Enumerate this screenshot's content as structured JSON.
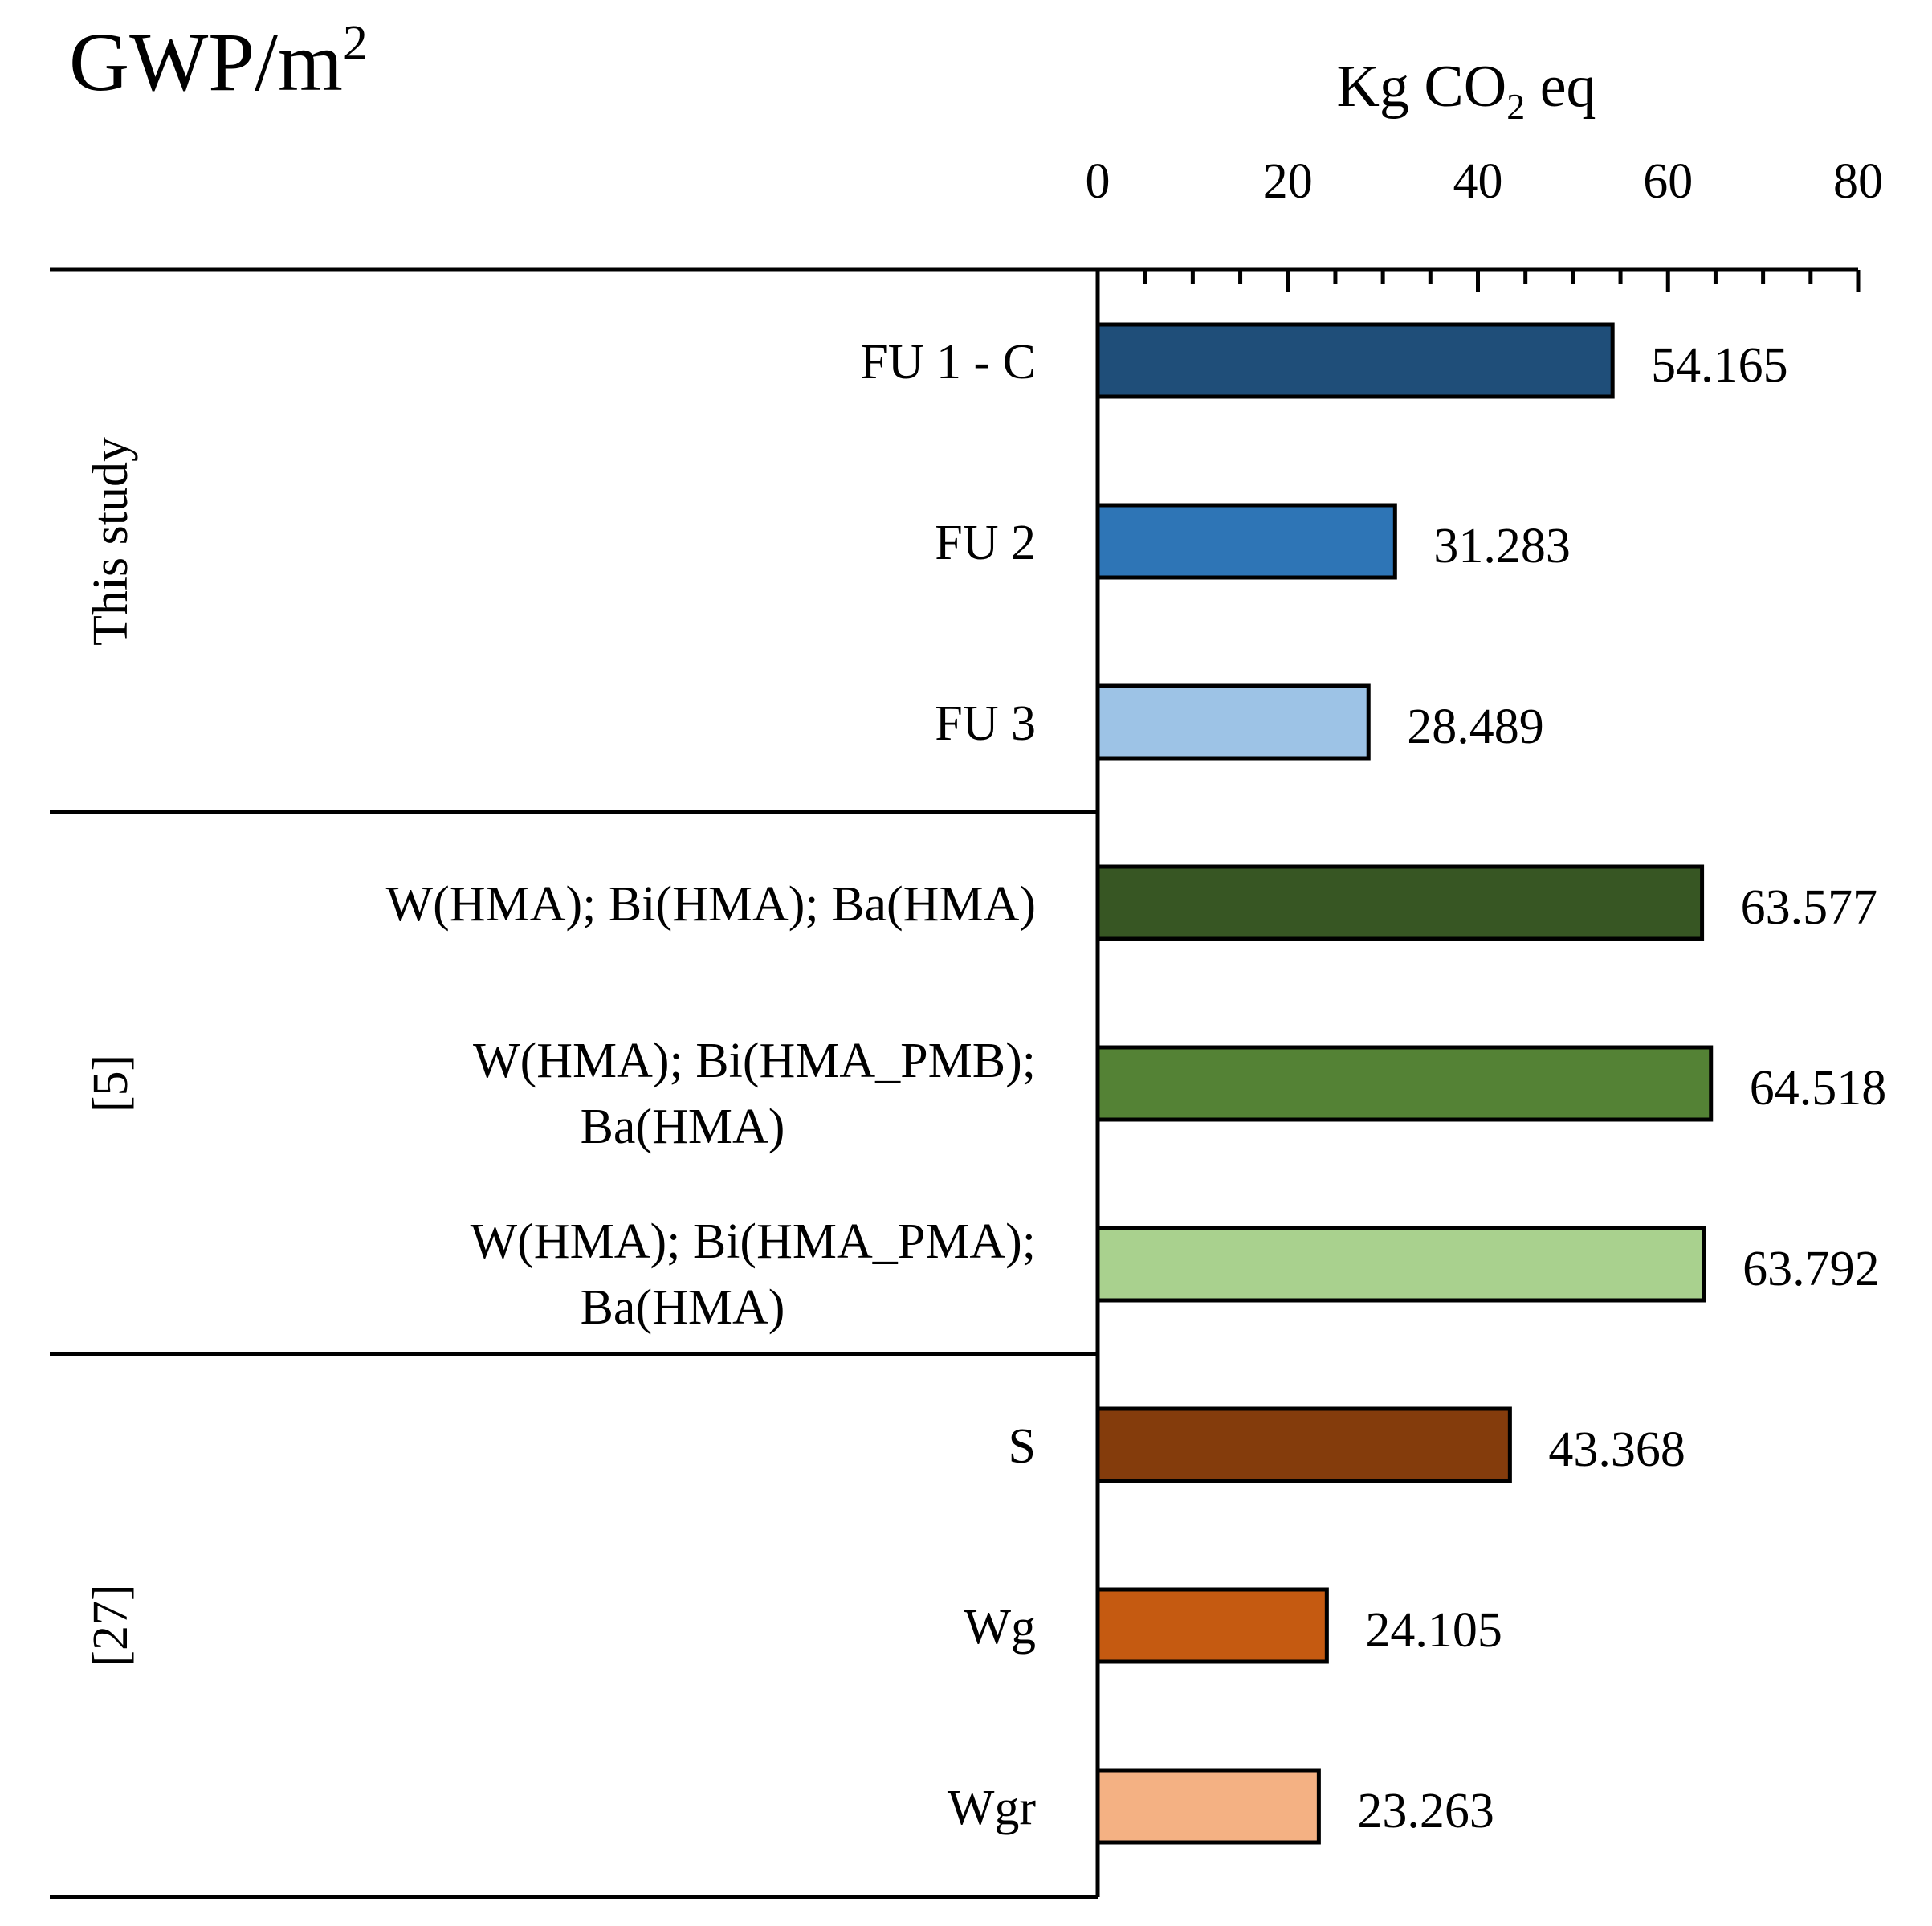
{
  "chart_data": {
    "type": "bar",
    "orientation": "horizontal",
    "title": "GWP/m",
    "title_superscript": "2",
    "unit_label_prefix": "Kg CO",
    "unit_label_subscript": "2",
    "unit_label_suffix": " eq",
    "xlim": [
      0,
      80
    ],
    "ticks": [
      "0",
      "20",
      "40",
      "60",
      "80"
    ],
    "tick_values": [
      0,
      20,
      40,
      60,
      80
    ],
    "minor_tick_step": 5,
    "groups": [
      {
        "name": "This study",
        "start": 0,
        "count": 3
      },
      {
        "name": "[5]",
        "start": 3,
        "count": 3
      },
      {
        "name": "[27]",
        "start": 6,
        "count": 3
      }
    ],
    "bars": [
      {
        "label_lines": [
          "FU 1 - C"
        ],
        "value": 54.165,
        "value_label": "54.165",
        "color": "#1f4e79"
      },
      {
        "label_lines": [
          "FU 2"
        ],
        "value": 31.283,
        "value_label": "31.283",
        "color": "#2e75b6"
      },
      {
        "label_lines": [
          "FU 3"
        ],
        "value": 28.489,
        "value_label": "28.489",
        "color": "#9dc3e6"
      },
      {
        "label_lines": [
          "W(HMA); Bi(HMA); Ba(HMA)"
        ],
        "value": 63.577,
        "value_label": "63.577",
        "color": "#375623"
      },
      {
        "label_lines": [
          "W(HMA); Bi(HMA_PMB);",
          "Ba(HMA)"
        ],
        "value": 64.518,
        "value_label": "64.518",
        "color": "#548235"
      },
      {
        "label_lines": [
          "W(HMA); Bi(HMA_PMA);",
          "Ba(HMA)"
        ],
        "value": 63.792,
        "value_label": "63.792",
        "color": "#a9d18e"
      },
      {
        "label_lines": [
          "S"
        ],
        "value": 43.368,
        "value_label": "43.368",
        "color": "#843c0c"
      },
      {
        "label_lines": [
          "Wg"
        ],
        "value": 24.105,
        "value_label": "24.105",
        "color": "#c55a11"
      },
      {
        "label_lines": [
          "Wgr"
        ],
        "value": 23.263,
        "value_label": "23.263",
        "color": "#f4b183"
      }
    ]
  }
}
